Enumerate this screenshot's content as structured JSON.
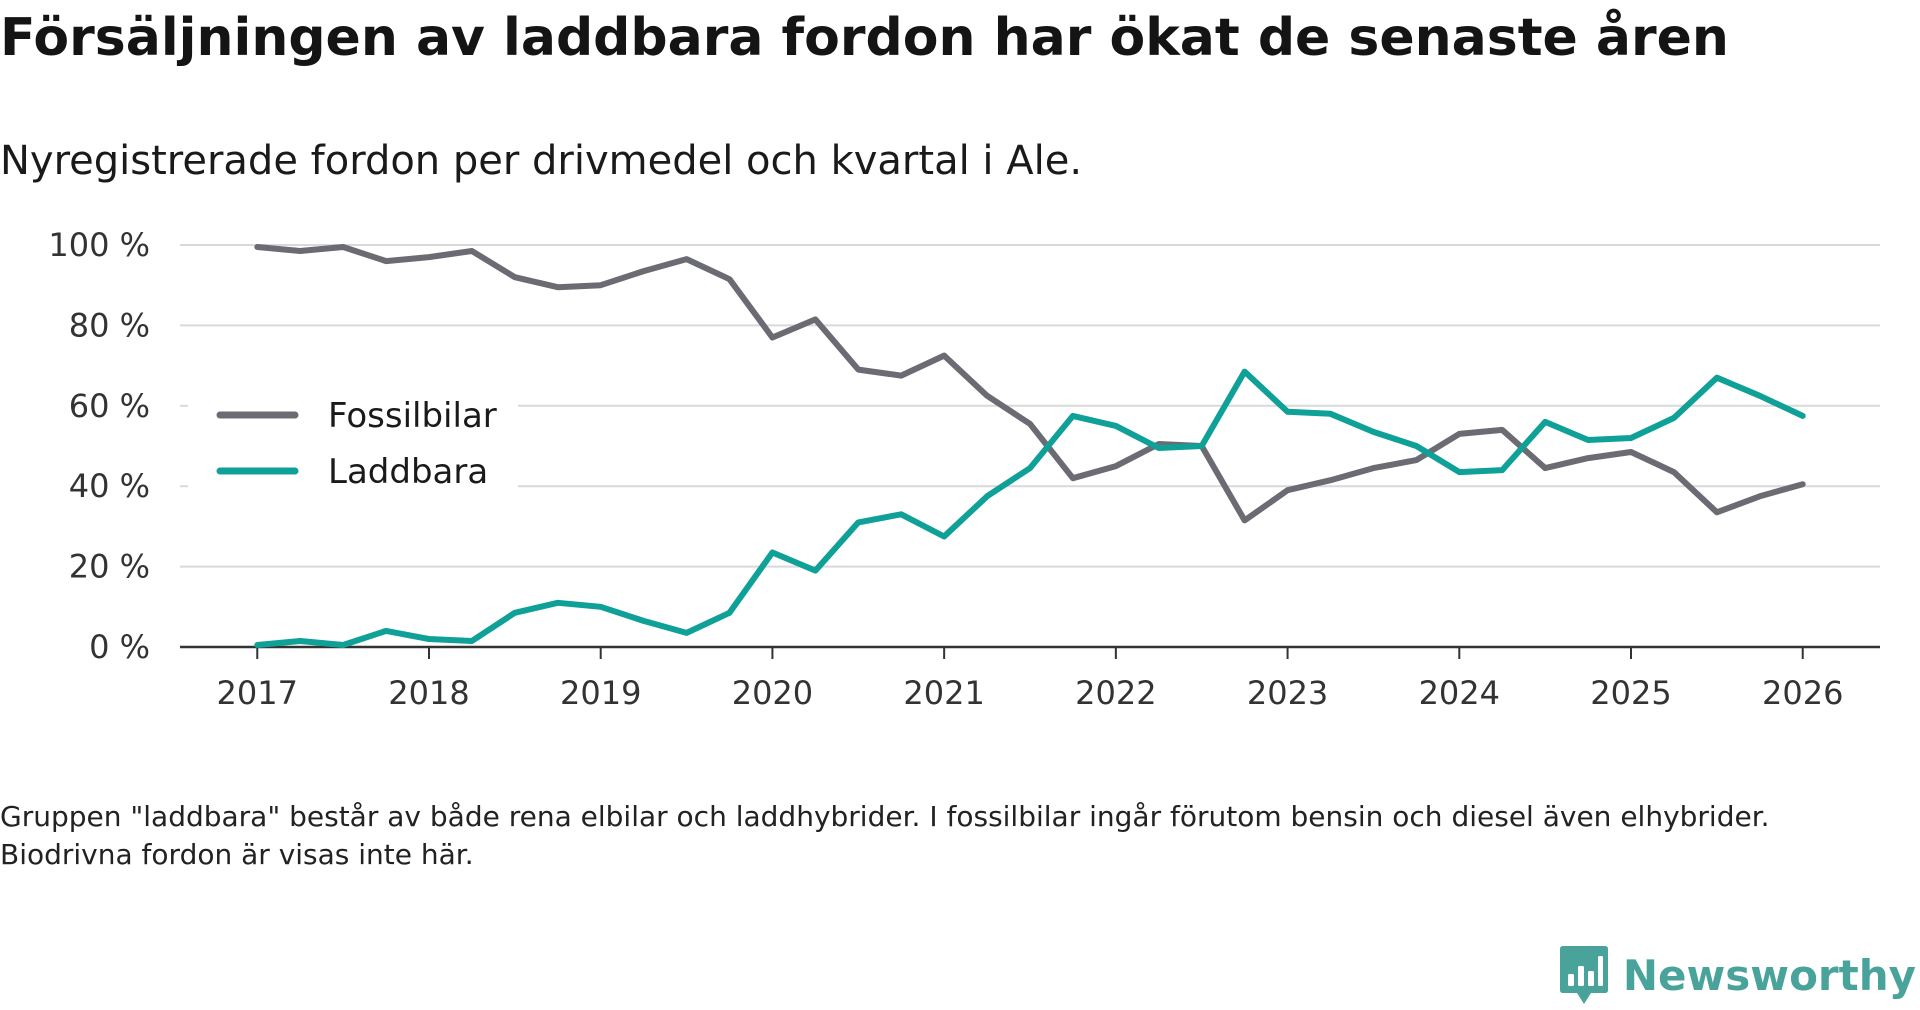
{
  "title": "Försäljningen av laddbara fordon har ökat de senaste åren",
  "subtitle": "Nyregistrerade fordon per drivmedel och kvartal i Ale.",
  "footnote": "Gruppen \"laddbara\" består av både rena elbilar och laddhybrider. I fossilbilar ingår förutom bensin och diesel även elhybrider. Biodrivna fordon är visas inte här.",
  "brand": "Newsworthy",
  "chart_data": {
    "type": "line",
    "title": "Försäljningen av laddbara fordon har ökat de senaste åren",
    "xlabel": "",
    "ylabel": "",
    "x": [
      2017.0,
      2017.25,
      2017.5,
      2017.75,
      2018.0,
      2018.25,
      2018.5,
      2018.75,
      2019.0,
      2019.25,
      2019.5,
      2019.75,
      2020.0,
      2020.25,
      2020.5,
      2020.75,
      2021.0,
      2021.25,
      2021.5,
      2021.75,
      2022.0,
      2022.25,
      2022.5,
      2022.75,
      2023.0,
      2023.25,
      2023.5,
      2023.75,
      2024.0,
      2024.25,
      2024.5,
      2024.75,
      2025.0,
      2025.25,
      2025.5,
      2025.75,
      2026.0
    ],
    "xlim": [
      2016.55,
      2026.45
    ],
    "ylim": [
      0,
      100
    ],
    "xticks": [
      2017,
      2018,
      2019,
      2020,
      2021,
      2022,
      2023,
      2024,
      2025,
      2026
    ],
    "yticks": [
      0,
      20,
      40,
      60,
      80,
      100
    ],
    "ytick_labels": [
      "0 %",
      "20 %",
      "40 %",
      "60 %",
      "80 %",
      "100 %"
    ],
    "grid": true,
    "legend_position": "center-left",
    "series": [
      {
        "name": "Fossilbilar",
        "color": "#6b6b73",
        "values": [
          99.5,
          98.5,
          99.5,
          96,
          97,
          98.5,
          92,
          89.5,
          90,
          93.5,
          96.5,
          91.5,
          77,
          81.5,
          69,
          67.5,
          72.5,
          62.5,
          55.5,
          42,
          45,
          50.5,
          50,
          31.5,
          39,
          41.5,
          44.5,
          46.5,
          53,
          54,
          44.5,
          47,
          48.5,
          43.5,
          33.5,
          37.5,
          40.5
        ]
      },
      {
        "name": "Laddbara",
        "color": "#0fa197",
        "values": [
          0.5,
          1.5,
          0.5,
          4,
          2,
          1.5,
          8.5,
          11,
          10,
          6.5,
          3.5,
          8.5,
          23.5,
          19,
          31,
          33,
          27.5,
          37.5,
          44.5,
          57.5,
          55,
          49.5,
          50,
          68.5,
          58.5,
          58,
          53.5,
          50,
          43.5,
          44,
          56,
          51.5,
          52,
          57,
          67,
          62.5,
          57.5
        ]
      }
    ]
  }
}
